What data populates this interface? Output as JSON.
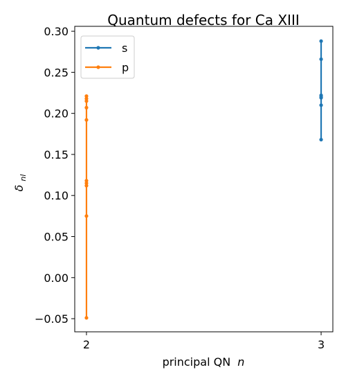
{
  "chart_data": {
    "type": "line",
    "title": "Quantum defects for Ca XIII",
    "xlabel": "principal QN",
    "xlabel_var": "n",
    "ylabel_symbol": "δ",
    "ylabel_sub": "nl",
    "x_ticks": [
      2,
      3
    ],
    "y_ticks": [
      "0.30",
      "0.25",
      "0.20",
      "0.15",
      "0.10",
      "0.05",
      "0.00",
      "−0.05"
    ],
    "y_tick_values": [
      0.3,
      0.25,
      0.2,
      0.15,
      0.1,
      0.05,
      0.0,
      -0.05
    ],
    "xlim": [
      1.95,
      3.05
    ],
    "ylim": [
      -0.066,
      0.306
    ],
    "grid": false,
    "legend_position": "upper-left",
    "series": [
      {
        "name": "s",
        "color": "#1f77b4",
        "x": [
          3,
          3,
          3,
          3,
          3,
          3,
          3
        ],
        "y": [
          0.288,
          0.266,
          0.222,
          0.22,
          0.219,
          0.21,
          0.168
        ]
      },
      {
        "name": "p",
        "color": "#ff7f0e",
        "x": [
          2,
          2,
          2,
          2,
          2,
          2,
          2,
          2,
          2,
          2
        ],
        "y": [
          0.221,
          0.218,
          0.215,
          0.207,
          0.192,
          0.118,
          0.115,
          0.112,
          0.075,
          -0.049
        ]
      }
    ]
  }
}
